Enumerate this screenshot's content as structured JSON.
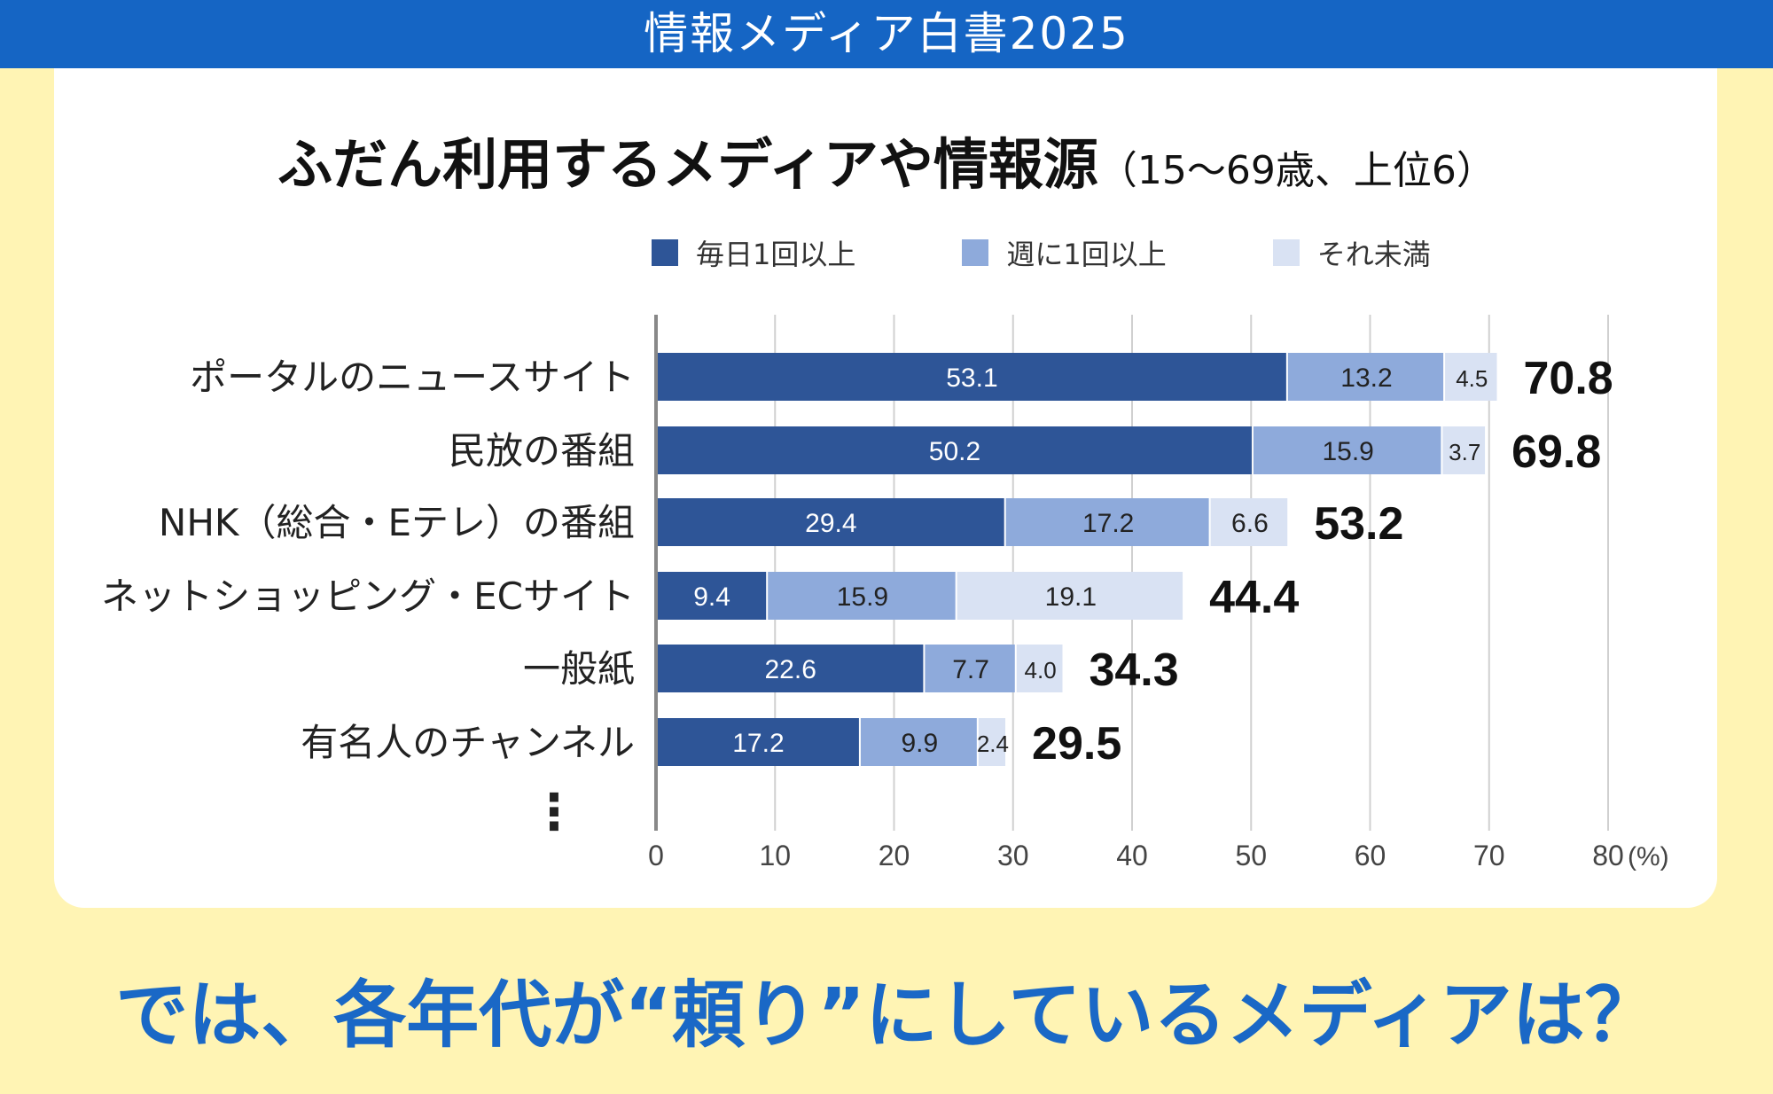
{
  "header": {
    "title": "情報メディア白書2025"
  },
  "colors": {
    "header": "#1565c4",
    "background": "#fff4b4",
    "daily": "#2e5597",
    "weekly": "#8eaadb",
    "less": "#d9e2f3"
  },
  "chart_data": {
    "type": "bar",
    "orientation": "horizontal-stacked",
    "title": "ふだん利用するメディアや情報源",
    "subtitle": "（15～69歳、上位6）",
    "categories": [
      "ポータルのニュースサイト",
      "民放の番組",
      "NHK（総合・Eテレ）の番組",
      "ネットショッピング・ECサイト",
      "一般紙",
      "有名人のチャンネル"
    ],
    "series": [
      {
        "name": "毎日1回以上",
        "values": [
          53.1,
          50.2,
          29.4,
          9.4,
          22.6,
          17.2
        ]
      },
      {
        "name": "週に1回以上",
        "values": [
          13.2,
          15.9,
          17.2,
          15.9,
          7.7,
          9.9
        ]
      },
      {
        "name": "それ未満",
        "values": [
          4.5,
          3.7,
          6.6,
          19.1,
          4.0,
          2.4
        ]
      }
    ],
    "totals": [
      "70.8",
      "69.8",
      "53.2",
      "44.4",
      "34.3",
      "29.5"
    ],
    "xlim": [
      0,
      80
    ],
    "xticks": [
      "0",
      "10",
      "20",
      "30",
      "40",
      "50",
      "60",
      "70",
      "80"
    ],
    "xunit": "(%)",
    "grid": true,
    "legend": "top",
    "continuation": "⋮"
  },
  "footer": {
    "text": "では、各年代が“頼り”にしているメディアは？"
  }
}
